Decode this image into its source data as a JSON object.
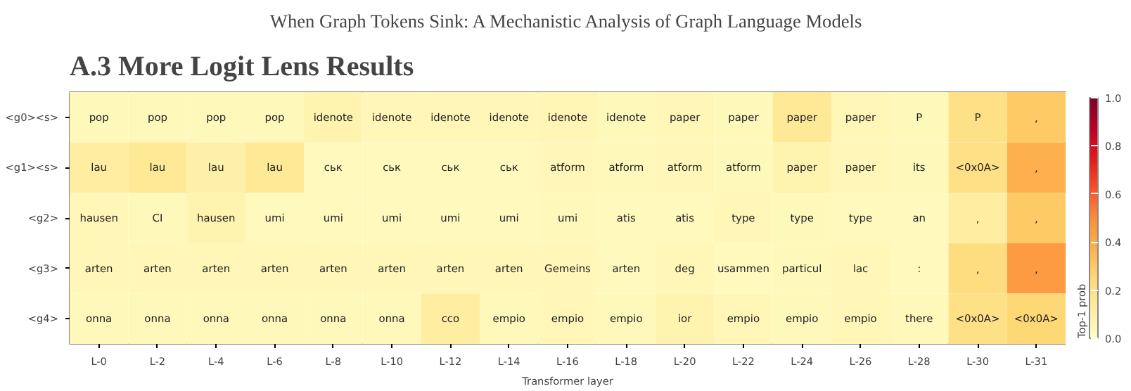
{
  "chart_data": {
    "type": "heatmap",
    "title": "When Graph Tokens Sink: A Mechanistic Analysis of Graph Language Models",
    "subtitle": "A.3    More Logit Lens Results",
    "xlabel": "Transformer layer",
    "clabel": "Top-1 prob",
    "categories": [
      "L-0",
      "L-2",
      "L-4",
      "L-6",
      "L-8",
      "L-10",
      "L-12",
      "L-14",
      "L-16",
      "L-18",
      "L-20",
      "L-22",
      "L-24",
      "L-26",
      "L-28",
      "L-30",
      "L-31"
    ],
    "y_categories": [
      "<g0><s>",
      "<g1><s>",
      "<g2>",
      "<g3>",
      "<g4>"
    ],
    "cells": [
      [
        0.05,
        0.05,
        0.05,
        0.05,
        0.08,
        0.06,
        0.06,
        0.06,
        0.07,
        0.05,
        0.06,
        0.05,
        0.15,
        0.06,
        0.05,
        0.2,
        0.3
      ],
      [
        0.12,
        0.15,
        0.1,
        0.15,
        0.04,
        0.04,
        0.04,
        0.04,
        0.06,
        0.05,
        0.06,
        0.05,
        0.08,
        0.06,
        0.05,
        0.2,
        0.38
      ],
      [
        0.06,
        0.05,
        0.08,
        0.04,
        0.04,
        0.04,
        0.04,
        0.04,
        0.05,
        0.04,
        0.04,
        0.06,
        0.05,
        0.04,
        0.04,
        0.12,
        0.3
      ],
      [
        0.06,
        0.06,
        0.06,
        0.06,
        0.06,
        0.06,
        0.06,
        0.06,
        0.06,
        0.04,
        0.06,
        0.04,
        0.05,
        0.06,
        0.04,
        0.22,
        0.45
      ],
      [
        0.05,
        0.05,
        0.05,
        0.05,
        0.05,
        0.05,
        0.12,
        0.05,
        0.06,
        0.05,
        0.08,
        0.06,
        0.05,
        0.06,
        0.05,
        0.2,
        0.25
      ]
    ],
    "cell_labels": [
      [
        "pop",
        "pop",
        "pop",
        "pop",
        "idenote",
        "idenote",
        "idenote",
        "idenote",
        "idenote",
        "idenote",
        "paper",
        "paper",
        "paper",
        "paper",
        "P",
        "P",
        ","
      ],
      [
        "lau",
        "lau",
        "lau",
        "lau",
        "ськ",
        "ськ",
        "ськ",
        "ськ",
        "atform",
        "atform",
        "atform",
        "atform",
        "paper",
        "paper",
        "its",
        "<0x0A>",
        ","
      ],
      [
        "hausen",
        "CI",
        "hausen",
        "umi",
        "umi",
        "umi",
        "umi",
        "umi",
        "umi",
        "atis",
        "atis",
        "type",
        "type",
        "type",
        "an",
        ",",
        ","
      ],
      [
        "arten",
        "arten",
        "arten",
        "arten",
        "arten",
        "arten",
        "arten",
        "arten",
        "Gemeins",
        "arten",
        "deg",
        "usammen",
        "particul",
        "lac",
        ":",
        ",",
        ","
      ],
      [
        "onna",
        "onna",
        "onna",
        "onna",
        "onna",
        "onna",
        "cco",
        "empio",
        "empio",
        "empio",
        "ior",
        "empio",
        "empio",
        "empio",
        "there",
        "<0x0A>",
        "<0x0A>"
      ]
    ],
    "clim": [
      0.0,
      1.0
    ],
    "cticks": [
      {
        "value": 0.0,
        "label": "0.0"
      },
      {
        "value": 0.2,
        "label": "0.2"
      },
      {
        "value": 0.4,
        "label": "0.4"
      },
      {
        "value": 0.6,
        "label": "0.6"
      },
      {
        "value": 0.8,
        "label": "0.8"
      },
      {
        "value": 1.0,
        "label": "1.0"
      }
    ]
  }
}
